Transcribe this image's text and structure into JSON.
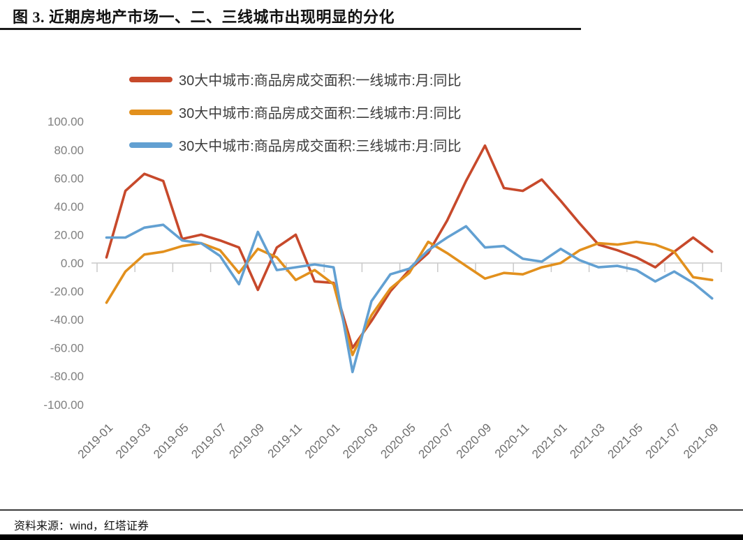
{
  "header": {
    "title": "图 3. 近期房地产市场一、二、三线城市出现明显的分化"
  },
  "footer": {
    "source_text": "资料来源：wind，红塔证券"
  },
  "chart_data": {
    "type": "line",
    "title": "图 3. 近期房地产市场一、二、三线城市出现明显的分化",
    "xlabel": "",
    "ylabel": "",
    "ylim": [
      -100,
      100
    ],
    "grid": "zero-line-only",
    "legend_position": "top-left-vertical",
    "y_ticks": [
      "100.00",
      "80.00",
      "60.00",
      "40.00",
      "20.00",
      "0.00",
      "-20.00",
      "-40.00",
      "-60.00",
      "-80.00",
      "-100.00"
    ],
    "x": [
      "2019-01",
      "2019-02",
      "2019-03",
      "2019-04",
      "2019-05",
      "2019-06",
      "2019-07",
      "2019-08",
      "2019-09",
      "2019-10",
      "2019-11",
      "2019-12",
      "2020-01",
      "2020-02",
      "2020-03",
      "2020-04",
      "2020-05",
      "2020-06",
      "2020-07",
      "2020-08",
      "2020-09",
      "2020-10",
      "2020-11",
      "2020-12",
      "2021-01",
      "2021-02",
      "2021-03",
      "2021-04",
      "2021-05",
      "2021-06",
      "2021-07",
      "2021-08",
      "2021-09"
    ],
    "x_tick_labels": [
      "2019-01",
      "2019-03",
      "2019-05",
      "2019-07",
      "2019-09",
      "2019-11",
      "2020-01",
      "2020-03",
      "2020-05",
      "2020-07",
      "2020-09",
      "2020-11",
      "2021-01",
      "2021-03",
      "2021-05",
      "2021-07",
      "2021-09"
    ],
    "series": [
      {
        "name": "30大中城市:商品房成交面积:一线城市:月:同比",
        "color": "#c7492b",
        "values": [
          4,
          51,
          63,
          58,
          17,
          20,
          16,
          11,
          -19,
          11,
          20,
          -13,
          -14,
          -60,
          -41,
          -20,
          -5,
          7,
          30,
          58,
          83,
          53,
          51,
          59,
          44,
          28,
          13,
          9,
          4,
          -3,
          8,
          18,
          8
        ]
      },
      {
        "name": "30大中城市:商品房成交面积:二线城市:月:同比",
        "color": "#e2901d",
        "values": [
          -28,
          -6,
          6,
          8,
          12,
          14,
          9,
          -7,
          10,
          4,
          -12,
          -5,
          -15,
          -65,
          -37,
          -18,
          -7,
          15,
          7,
          -2,
          -11,
          -7,
          -8,
          -3,
          0,
          9,
          14,
          13,
          15,
          13,
          8,
          -10,
          -12
        ]
      },
      {
        "name": "30大中城市:商品房成交面积:三线城市:月:同比",
        "color": "#62a0d2",
        "values": [
          18,
          18,
          25,
          27,
          16,
          14,
          5,
          -15,
          22,
          -5,
          -3,
          -1,
          -3,
          -77,
          -27,
          -8,
          -4,
          9,
          18,
          26,
          11,
          12,
          3,
          1,
          10,
          2,
          -3,
          -2,
          -5,
          -13,
          -6,
          -14,
          -25
        ]
      }
    ]
  }
}
